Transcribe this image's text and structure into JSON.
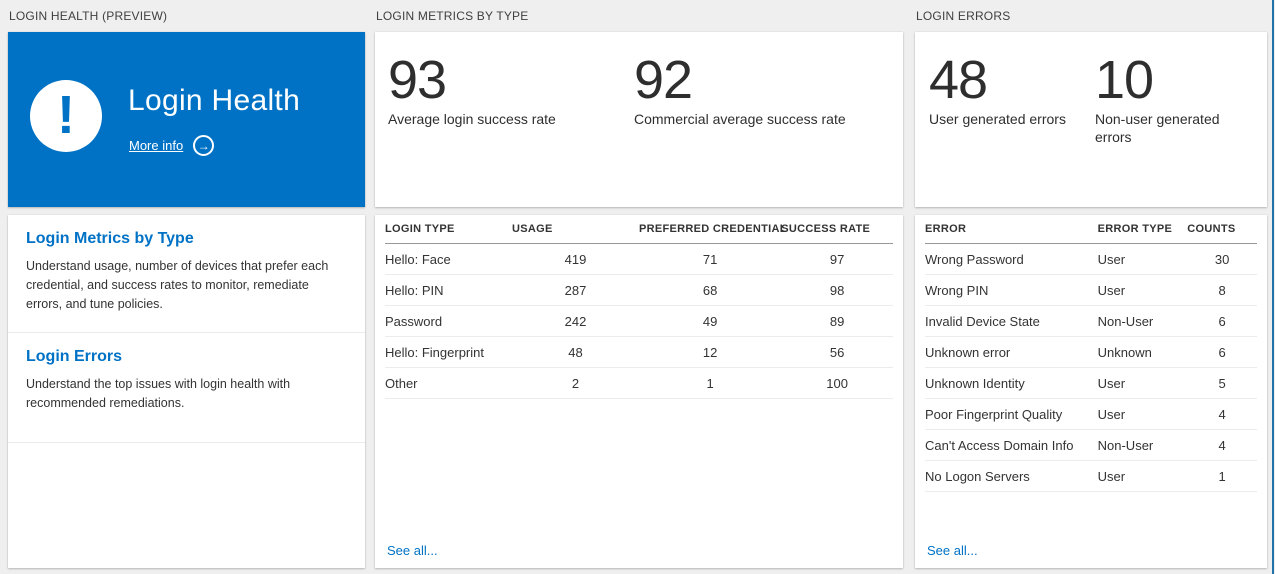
{
  "colors": {
    "accent_blue": "#0072c6",
    "link_blue": "#0072c6",
    "page_background": "#efefef",
    "edge_line_blue": "#2272a8",
    "text_dark": "#333333"
  },
  "health": {
    "section_title": "LOGIN HEALTH (PREVIEW)",
    "hero": {
      "title": "Login Health",
      "more_info_label": "More info",
      "icon": "exclamation-icon",
      "arrow_icon": "arrow-right-circle-icon",
      "arrow_glyph": "→",
      "exclamation_glyph": "!"
    },
    "items": [
      {
        "title": "Login Metrics by Type",
        "description": "Understand usage, number of devices that prefer each credential, and success rates to monitor, remediate errors, and tune policies."
      },
      {
        "title": "Login Errors",
        "description": "Understand the top issues with login health with recommended remediations."
      }
    ]
  },
  "metrics": {
    "section_title": "LOGIN METRICS BY TYPE",
    "stats": [
      {
        "value": "93",
        "label": "Average login success rate"
      },
      {
        "value": "92",
        "label": "Commercial average success rate"
      }
    ],
    "table": {
      "headers": [
        "LOGIN TYPE",
        "USAGE",
        "PREFERRED CREDENTIAL",
        "SUCCESS RATE"
      ],
      "rows": [
        [
          "Hello: Face",
          "419",
          "71",
          "97"
        ],
        [
          "Hello: PIN",
          "287",
          "68",
          "98"
        ],
        [
          "Password",
          "242",
          "49",
          "89"
        ],
        [
          "Hello: Fingerprint",
          "48",
          "12",
          "56"
        ],
        [
          "Other",
          "2",
          "1",
          "100"
        ]
      ]
    },
    "see_all": "See all..."
  },
  "errors": {
    "section_title": "LOGIN ERRORS",
    "stats": [
      {
        "value": "48",
        "label": "User generated errors"
      },
      {
        "value": "10",
        "label": "Non-user generated errors"
      }
    ],
    "table": {
      "headers": [
        "ERROR",
        "ERROR TYPE",
        "COUNTS"
      ],
      "rows": [
        [
          "Wrong Password",
          "User",
          "30"
        ],
        [
          "Wrong PIN",
          "User",
          "8"
        ],
        [
          "Invalid Device State",
          "Non-User",
          "6"
        ],
        [
          "Unknown error",
          "Unknown",
          "6"
        ],
        [
          "Unknown Identity",
          "User",
          "5"
        ],
        [
          "Poor Fingerprint Quality",
          "User",
          "4"
        ],
        [
          "Can't Access Domain Info",
          "Non-User",
          "4"
        ],
        [
          "No Logon Servers",
          "User",
          "1"
        ]
      ]
    },
    "see_all": "See all..."
  }
}
